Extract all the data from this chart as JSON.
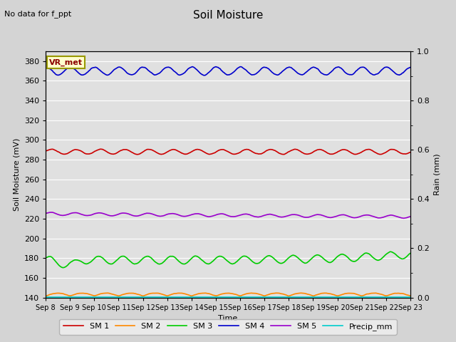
{
  "title": "Soil Moisture",
  "top_left_text": "No data for f_ppt",
  "annotation_text": "VR_met",
  "ylabel_left": "Soil Moisture (mV)",
  "ylabel_right": "Rain (mm)",
  "xlabel": "Time",
  "ylim_left": [
    140,
    390
  ],
  "ylim_right": [
    0.0,
    1.0
  ],
  "yticks_left": [
    140,
    160,
    180,
    200,
    220,
    240,
    260,
    280,
    300,
    320,
    340,
    360,
    380
  ],
  "yticks_right": [
    0.0,
    0.2,
    0.4,
    0.6,
    0.8,
    1.0
  ],
  "xtick_labels": [
    "Sep 8",
    "Sep 9",
    "Sep 10",
    "Sep 11",
    "Sep 12",
    "Sep 13",
    "Sep 14",
    "Sep 15",
    "Sep 16",
    "Sep 17",
    "Sep 18",
    "Sep 19",
    "Sep 20",
    "Sep 21",
    "Sep 22",
    "Sep 23"
  ],
  "sm1_base": 288,
  "sm1_amp": 2.5,
  "sm2_base": 141.5,
  "sm2_amp": 3.0,
  "sm3_base": 178,
  "sm3_amp": 4.0,
  "sm4_base": 370,
  "sm4_amp": 4.0,
  "sm5_base": 225,
  "sm5_amp": 1.5,
  "sm1_color": "#cc0000",
  "sm2_color": "#ff8800",
  "sm3_color": "#00cc00",
  "sm4_color": "#0000cc",
  "sm5_color": "#9900cc",
  "precip_color": "#00cccc",
  "bg_color": "#d4d4d4",
  "plot_bg_color": "#e0e0e0",
  "legend_labels": [
    "SM 1",
    "SM 2",
    "SM 3",
    "SM 4",
    "SM 5",
    "Precip_mm"
  ],
  "grid_color": "#ffffff",
  "n_days": 15,
  "points_per_day": 48
}
